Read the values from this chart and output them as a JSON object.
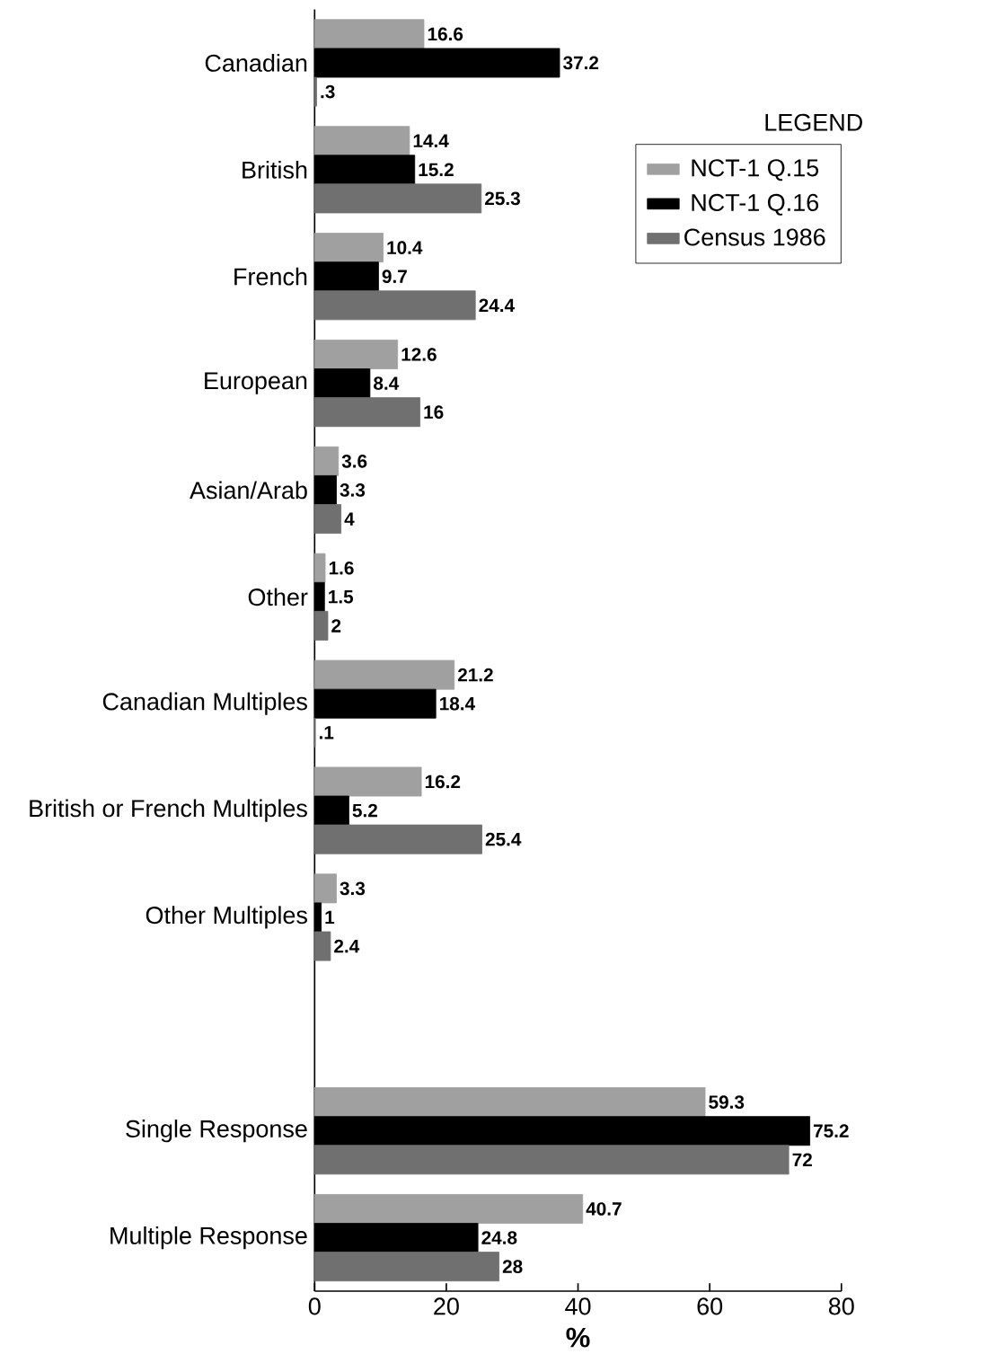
{
  "chart_data": {
    "type": "bar",
    "orientation": "horizontal",
    "xlabel": "%",
    "legend_title": "LEGEND",
    "legend": "top right",
    "categories": [
      "Canadian",
      "British",
      "French",
      "European",
      "Asian/Arab",
      "Other",
      "Canadian Multiples",
      "British or French Multiples",
      "Other Multiples",
      null,
      "Single Response",
      "Multiple Response"
    ],
    "series": [
      {
        "name": "NCT-1 Q.15",
        "color": "#a0a0a0",
        "values": [
          16.6,
          14.4,
          10.4,
          12.6,
          3.6,
          1.6,
          21.2,
          16.2,
          3.3,
          null,
          59.3,
          40.7
        ],
        "value_labels": [
          "16.6",
          "14.4",
          "10.4",
          "12.6",
          "3.6",
          "1.6",
          "21.2",
          "16.2",
          "3.3",
          null,
          "59.3",
          "40.7"
        ]
      },
      {
        "name": "NCT-1 Q.16",
        "color": "#000000",
        "values": [
          37.2,
          15.2,
          9.7,
          8.4,
          3.3,
          1.5,
          18.4,
          5.2,
          1,
          null,
          75.2,
          24.8
        ],
        "value_labels": [
          "37.2",
          "15.2",
          "9.7",
          "8.4",
          "3.3",
          "1.5",
          "18.4",
          "5.2",
          "1",
          null,
          "75.2",
          "24.8"
        ]
      },
      {
        "name": "Census 1986",
        "color": "#707070",
        "values": [
          0.3,
          25.3,
          24.4,
          16,
          4,
          2,
          0.1,
          25.4,
          2.4,
          null,
          72,
          28
        ],
        "value_labels": [
          ".3",
          "25.3",
          "24.4",
          "16",
          "4",
          "2",
          ".1",
          "25.4",
          "2.4",
          null,
          "72",
          "28"
        ]
      }
    ],
    "xlim": [
      0,
      80
    ],
    "xticks": [
      0,
      20,
      40,
      60,
      80
    ]
  }
}
